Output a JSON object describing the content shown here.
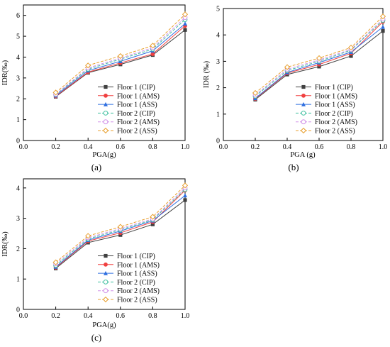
{
  "chart_data": [
    {
      "type": "line",
      "panel_label": "(a)",
      "xlabel": "PGA(g)",
      "ylabel": "IDR(‰)",
      "xlim": [
        0.0,
        1.0
      ],
      "ylim": [
        0,
        6.5
      ],
      "x_ticks": [
        "0.0",
        "0.2",
        "0.4",
        "0.6",
        "0.8",
        "1.0"
      ],
      "y_ticks": [
        "0",
        "1",
        "2",
        "3",
        "4",
        "5",
        "6"
      ],
      "legend_position": "lower-right",
      "x": [
        0.2,
        0.4,
        0.6,
        0.8,
        1.0
      ],
      "series": [
        {
          "name": "Floor 1 (CIP)",
          "color": "#404040",
          "dash": "solid",
          "marker": "square",
          "values": [
            2.1,
            3.25,
            3.65,
            4.1,
            5.3
          ]
        },
        {
          "name": "Floor 1 (AMS)",
          "color": "#f04040",
          "dash": "solid",
          "marker": "circle",
          "values": [
            2.12,
            3.28,
            3.72,
            4.15,
            5.5
          ]
        },
        {
          "name": "Floor 1 (ASS)",
          "color": "#2f6fe0",
          "dash": "solid",
          "marker": "triangle",
          "values": [
            2.15,
            3.35,
            3.8,
            4.3,
            5.6
          ]
        },
        {
          "name": "Floor 2 (CIP)",
          "color": "#40c0a0",
          "dash": "dashed",
          "marker": "open-circle",
          "values": [
            2.2,
            3.42,
            3.9,
            4.38,
            5.8
          ]
        },
        {
          "name": "Floor 2 (AMS)",
          "color": "#d090e8",
          "dash": "dashed",
          "marker": "open-circle",
          "values": [
            2.22,
            3.48,
            3.95,
            4.45,
            5.9
          ]
        },
        {
          "name": "Floor 2 (ASS)",
          "color": "#e8a030",
          "dash": "dashed",
          "marker": "open-diamond",
          "values": [
            2.3,
            3.6,
            4.05,
            4.55,
            6.05
          ]
        }
      ]
    },
    {
      "type": "line",
      "panel_label": "(b)",
      "xlabel": "PGA (g)",
      "ylabel": "IDR (‰)",
      "xlim": [
        0.0,
        1.0
      ],
      "ylim": [
        0,
        5
      ],
      "x_ticks": [
        "0.0",
        "0.2",
        "0.4",
        "0.6",
        "0.8",
        "1.0"
      ],
      "y_ticks": [
        "0",
        "1",
        "2",
        "3",
        "4",
        "5"
      ],
      "legend_position": "lower-right",
      "x": [
        0.2,
        0.4,
        0.6,
        0.8,
        1.0
      ],
      "series": [
        {
          "name": "Floor 1 (CIP)",
          "color": "#404040",
          "dash": "solid",
          "marker": "square",
          "values": [
            1.55,
            2.5,
            2.8,
            3.2,
            4.15
          ]
        },
        {
          "name": "Floor 1 (AMS)",
          "color": "#f04040",
          "dash": "solid",
          "marker": "circle",
          "values": [
            1.58,
            2.55,
            2.88,
            3.3,
            4.5
          ]
        },
        {
          "name": "Floor 1 (ASS)",
          "color": "#2f6fe0",
          "dash": "solid",
          "marker": "triangle",
          "values": [
            1.6,
            2.58,
            2.95,
            3.35,
            4.3
          ]
        },
        {
          "name": "Floor 2 (CIP)",
          "color": "#40c0a0",
          "dash": "dashed",
          "marker": "open-circle",
          "values": [
            1.68,
            2.65,
            3.0,
            3.42,
            4.55
          ]
        },
        {
          "name": "Floor 2 (AMS)",
          "color": "#d090e8",
          "dash": "dashed",
          "marker": "open-circle",
          "values": [
            1.72,
            2.7,
            3.05,
            3.45,
            4.6
          ]
        },
        {
          "name": "Floor 2 (ASS)",
          "color": "#e8a030",
          "dash": "dashed",
          "marker": "open-diamond",
          "values": [
            1.8,
            2.78,
            3.12,
            3.52,
            4.7
          ]
        }
      ]
    },
    {
      "type": "line",
      "panel_label": "(c)",
      "xlabel": "PGA(g)",
      "ylabel": "IDR(‰)",
      "xlim": [
        0.0,
        1.0
      ],
      "ylim": [
        0,
        4.3
      ],
      "x_ticks": [
        "0.0",
        "0.2",
        "0.4",
        "0.6",
        "0.8",
        "1.0"
      ],
      "y_ticks": [
        "0",
        "1",
        "2",
        "3",
        "4"
      ],
      "legend_position": "lower-right",
      "x": [
        0.2,
        0.4,
        0.6,
        0.8,
        1.0
      ],
      "series": [
        {
          "name": "Floor 1 (CIP)",
          "color": "#404040",
          "dash": "solid",
          "marker": "square",
          "values": [
            1.35,
            2.2,
            2.45,
            2.8,
            3.6
          ]
        },
        {
          "name": "Floor 1 (AMS)",
          "color": "#f04040",
          "dash": "solid",
          "marker": "circle",
          "values": [
            1.38,
            2.25,
            2.52,
            2.88,
            3.92
          ]
        },
        {
          "name": "Floor 1 (ASS)",
          "color": "#2f6fe0",
          "dash": "solid",
          "marker": "triangle",
          "values": [
            1.4,
            2.28,
            2.58,
            2.92,
            3.75
          ]
        },
        {
          "name": "Floor 2 (CIP)",
          "color": "#40c0a0",
          "dash": "dashed",
          "marker": "open-circle",
          "values": [
            1.45,
            2.32,
            2.62,
            2.95,
            3.95
          ]
        },
        {
          "name": "Floor 2 (AMS)",
          "color": "#d090e8",
          "dash": "dashed",
          "marker": "open-circle",
          "values": [
            1.5,
            2.36,
            2.66,
            2.98,
            4.0
          ]
        },
        {
          "name": "Floor 2 (ASS)",
          "color": "#e8a030",
          "dash": "dashed",
          "marker": "open-diamond",
          "values": [
            1.55,
            2.42,
            2.72,
            3.05,
            4.08
          ]
        }
      ]
    }
  ]
}
